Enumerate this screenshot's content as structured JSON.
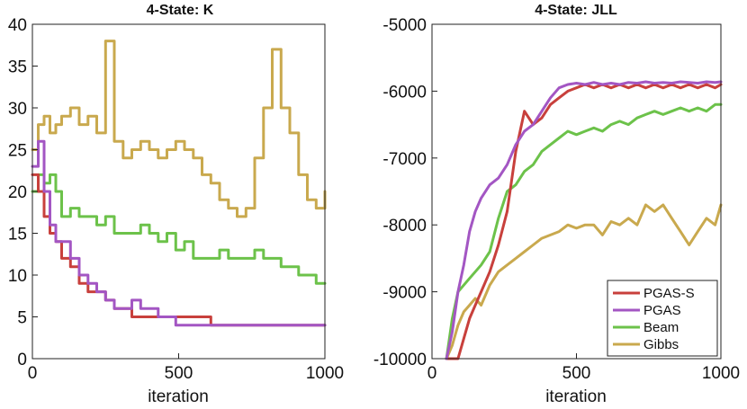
{
  "chart_data": [
    {
      "type": "line",
      "title": "4-State: K",
      "xlabel": "iteration",
      "ylabel": "",
      "xlim": [
        0,
        1000
      ],
      "ylim": [
        0,
        40
      ],
      "xticks": [
        0,
        500,
        1000
      ],
      "yticks": [
        0,
        5,
        10,
        15,
        20,
        25,
        30,
        35,
        40
      ],
      "step": true,
      "series": [
        {
          "name": "Gibbs",
          "color": "#C9A94E",
          "x": [
            0,
            20,
            40,
            60,
            80,
            100,
            130,
            160,
            190,
            220,
            250,
            280,
            310,
            340,
            370,
            400,
            430,
            460,
            490,
            520,
            550,
            580,
            610,
            640,
            670,
            700,
            730,
            760,
            790,
            820,
            850,
            880,
            910,
            940,
            970,
            1000
          ],
          "y": [
            25,
            28,
            29,
            27,
            28,
            29,
            30,
            28,
            29,
            27,
            38,
            26,
            24,
            25,
            26,
            25,
            24,
            25,
            26,
            25,
            24,
            22,
            21,
            19,
            18,
            17,
            18,
            24,
            30,
            37,
            30,
            27,
            22,
            19,
            18,
            20
          ]
        },
        {
          "name": "Beam",
          "color": "#6CC24A",
          "x": [
            0,
            20,
            40,
            60,
            80,
            100,
            130,
            160,
            190,
            220,
            250,
            280,
            310,
            340,
            370,
            400,
            430,
            460,
            490,
            520,
            550,
            580,
            610,
            640,
            670,
            700,
            730,
            760,
            790,
            820,
            850,
            880,
            910,
            940,
            970,
            1000
          ],
          "y": [
            20,
            22,
            21,
            22,
            20,
            17,
            18,
            17,
            17,
            16,
            17,
            15,
            15,
            15,
            16,
            15,
            14,
            15,
            13,
            14,
            12,
            12,
            12,
            13,
            12,
            12,
            12,
            13,
            12,
            12,
            11,
            11,
            10,
            10,
            9,
            9
          ]
        },
        {
          "name": "PGAS-S",
          "color": "#C8403C",
          "x": [
            0,
            20,
            40,
            60,
            80,
            100,
            130,
            160,
            190,
            220,
            250,
            280,
            310,
            340,
            370,
            400,
            430,
            460,
            490,
            520,
            550,
            580,
            610,
            640,
            670,
            700,
            730,
            760,
            790,
            820,
            850,
            880,
            910,
            940,
            970,
            1000
          ],
          "y": [
            22,
            20,
            17,
            15,
            14,
            12,
            11,
            9,
            8,
            8,
            7,
            6,
            6,
            5,
            5,
            5,
            5,
            5,
            5,
            5,
            5,
            5,
            4,
            4,
            4,
            4,
            4,
            4,
            4,
            4,
            4,
            4,
            4,
            4,
            4,
            4
          ]
        },
        {
          "name": "PGAS",
          "color": "#A356C3",
          "x": [
            0,
            20,
            40,
            60,
            80,
            100,
            130,
            160,
            190,
            220,
            250,
            280,
            310,
            340,
            370,
            400,
            430,
            460,
            490,
            520,
            550,
            580,
            610,
            640,
            670,
            700,
            730,
            760,
            790,
            820,
            850,
            880,
            910,
            940,
            970,
            1000
          ],
          "y": [
            23,
            26,
            20,
            16,
            14,
            14,
            12,
            10,
            9,
            8,
            7,
            6,
            6,
            7,
            6,
            6,
            5,
            5,
            4,
            4,
            4,
            4,
            4,
            4,
            4,
            4,
            4,
            4,
            4,
            4,
            4,
            4,
            4,
            4,
            4,
            4
          ]
        }
      ]
    },
    {
      "type": "line",
      "title": "4-State: JLL",
      "xlabel": "iteration",
      "ylabel": "",
      "xlim": [
        0,
        1000
      ],
      "ylim": [
        -10000,
        -5000
      ],
      "xticks": [
        0,
        500,
        1000
      ],
      "yticks": [
        -10000,
        -9000,
        -8000,
        -7000,
        -6000,
        -5000
      ],
      "legend": "bottom-right",
      "series": [
        {
          "name": "Gibbs",
          "color": "#C9A94E",
          "x": [
            50,
            70,
            90,
            110,
            130,
            150,
            170,
            200,
            230,
            260,
            290,
            320,
            350,
            380,
            410,
            440,
            470,
            500,
            530,
            560,
            590,
            620,
            650,
            680,
            710,
            740,
            770,
            800,
            830,
            860,
            890,
            920,
            950,
            980,
            1000
          ],
          "y": [
            -10000,
            -9800,
            -9500,
            -9300,
            -9200,
            -9100,
            -9200,
            -8900,
            -8700,
            -8600,
            -8500,
            -8400,
            -8300,
            -8200,
            -8150,
            -8100,
            -8000,
            -8050,
            -8000,
            -8000,
            -8150,
            -7950,
            -8000,
            -7900,
            -8000,
            -7700,
            -7800,
            -7700,
            -7900,
            -8100,
            -8300,
            -8100,
            -7900,
            -8000,
            -7700
          ]
        },
        {
          "name": "Beam",
          "color": "#6CC24A",
          "x": [
            50,
            70,
            90,
            110,
            130,
            150,
            170,
            200,
            230,
            260,
            290,
            320,
            350,
            380,
            410,
            440,
            470,
            500,
            530,
            560,
            590,
            620,
            650,
            680,
            710,
            740,
            770,
            800,
            830,
            860,
            890,
            920,
            950,
            980,
            1000
          ],
          "y": [
            -10000,
            -9400,
            -9000,
            -8900,
            -8800,
            -8700,
            -8600,
            -8400,
            -7900,
            -7500,
            -7400,
            -7200,
            -7100,
            -6900,
            -6800,
            -6700,
            -6600,
            -6650,
            -6600,
            -6550,
            -6600,
            -6500,
            -6450,
            -6500,
            -6400,
            -6350,
            -6300,
            -6350,
            -6300,
            -6250,
            -6300,
            -6250,
            -6300,
            -6200,
            -6200
          ]
        },
        {
          "name": "PGAS-S",
          "color": "#C8403C",
          "x": [
            50,
            70,
            90,
            110,
            130,
            150,
            170,
            200,
            230,
            260,
            290,
            320,
            350,
            380,
            410,
            440,
            470,
            500,
            530,
            560,
            590,
            620,
            650,
            680,
            710,
            740,
            770,
            800,
            830,
            860,
            890,
            920,
            950,
            980,
            1000
          ],
          "y": [
            -10000,
            -10000,
            -10000,
            -9700,
            -9400,
            -9200,
            -9000,
            -8700,
            -8300,
            -7800,
            -6900,
            -6300,
            -6500,
            -6400,
            -6200,
            -6100,
            -6000,
            -5950,
            -5900,
            -5950,
            -5900,
            -5950,
            -5900,
            -5950,
            -5900,
            -5950,
            -5900,
            -5950,
            -5900,
            -5950,
            -5900,
            -5950,
            -5900,
            -5950,
            -5900
          ]
        },
        {
          "name": "PGAS",
          "color": "#A356C3",
          "x": [
            50,
            70,
            90,
            110,
            130,
            150,
            170,
            200,
            230,
            260,
            290,
            320,
            350,
            380,
            410,
            440,
            470,
            500,
            530,
            560,
            590,
            620,
            650,
            680,
            710,
            740,
            770,
            800,
            830,
            860,
            890,
            920,
            950,
            980,
            1000
          ],
          "y": [
            -10000,
            -9600,
            -9000,
            -8600,
            -8100,
            -7800,
            -7600,
            -7400,
            -7300,
            -7100,
            -6800,
            -6600,
            -6500,
            -6300,
            -6100,
            -5950,
            -5900,
            -5880,
            -5900,
            -5870,
            -5900,
            -5880,
            -5900,
            -5870,
            -5880,
            -5860,
            -5880,
            -5870,
            -5880,
            -5860,
            -5870,
            -5880,
            -5860,
            -5870,
            -5860
          ]
        }
      ]
    }
  ]
}
